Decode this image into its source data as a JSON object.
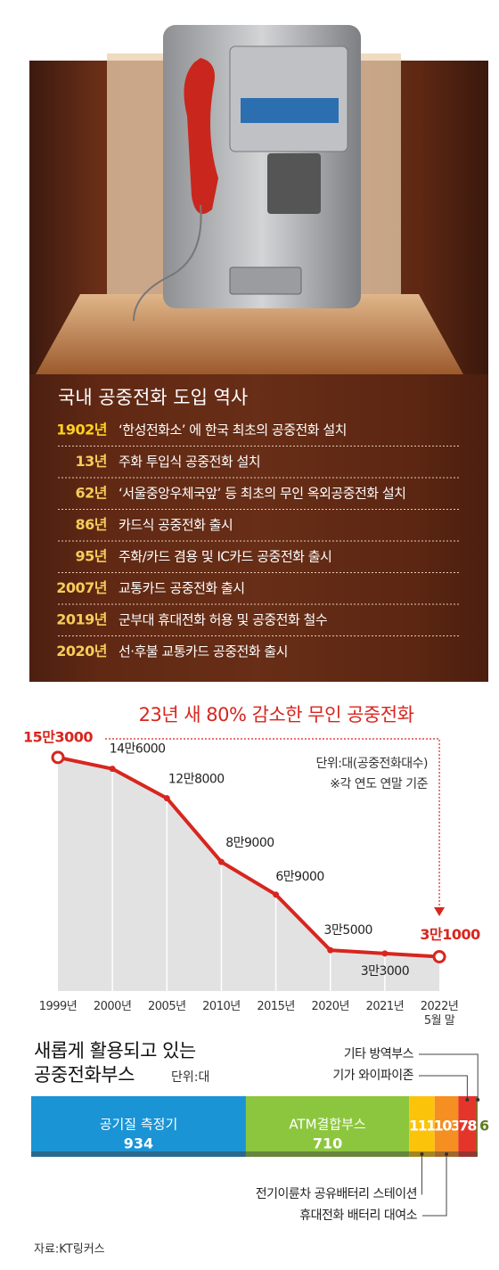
{
  "timeline": {
    "title": "국내 공중전화 도입 역사",
    "items": [
      {
        "year": "1902년",
        "text": "‘한성전화소’ 에 한국 최초의 공중전화 설치"
      },
      {
        "year": "13년",
        "text": "주화 투입식 공중전화 설치"
      },
      {
        "year": "62년",
        "text": "‘서울중앙우체국앞’ 등 최초의 무인 옥외공중전화 설치"
      },
      {
        "year": "86년",
        "text": "카드식 공중전화 출시"
      },
      {
        "year": "95년",
        "text": "주화/카드 겸용 및 IC카드 공중전화 출시"
      },
      {
        "year": "2007년",
        "text": "교통카드 공중전화 출시"
      },
      {
        "year": "2019년",
        "text": "군부대 휴대전화 허용 및 공중전화 철수"
      },
      {
        "year": "2020년",
        "text": "선·후불 교통카드 공중전화 출시"
      }
    ]
  },
  "chart_data": [
    {
      "type": "line",
      "title": "23년 새 80% 감소한 무인 공중전화",
      "unit": "단위:대(공중전화대수)",
      "note": "※각 연도 연말 기준",
      "categories": [
        "1999년",
        "2000년",
        "2005년",
        "2010년",
        "2015년",
        "2020년",
        "2021년",
        "2022년 5월 말"
      ],
      "values": [
        153000,
        146000,
        128000,
        89000,
        69000,
        35000,
        33000,
        31000
      ],
      "value_labels": [
        "15만3000",
        "14만6000",
        "12만8000",
        "8만9000",
        "6만9000",
        "3만5000",
        "3만3000",
        "3만1000"
      ],
      "color": "#d7261e",
      "ylim": [
        10000,
        160000
      ]
    },
    {
      "type": "stacked_bar",
      "title": [
        "새롭게 활용되고 있는",
        "공중전화부스"
      ],
      "unit": "단위:대",
      "series": [
        {
          "name": "공기질 측정기",
          "color": "#1a94d5",
          "values": [
            934
          ]
        },
        {
          "name": "ATM결합부스",
          "color": "#8cc63e",
          "values": [
            710
          ]
        },
        {
          "name": "전기이륜차 공유배터리 스테이션",
          "color": "#fcc30b",
          "values": [
            111
          ]
        },
        {
          "name": "휴대전화 배터리 대여소",
          "color": "#f58f22",
          "values": [
            103
          ]
        },
        {
          "name": "기가 와이파이존",
          "color": "#e4352b",
          "values": [
            78
          ]
        },
        {
          "name": "기타 방역부스",
          "color": "#5f7f22",
          "values": [
            6
          ]
        }
      ]
    }
  ],
  "source": "자료:KT링커스"
}
